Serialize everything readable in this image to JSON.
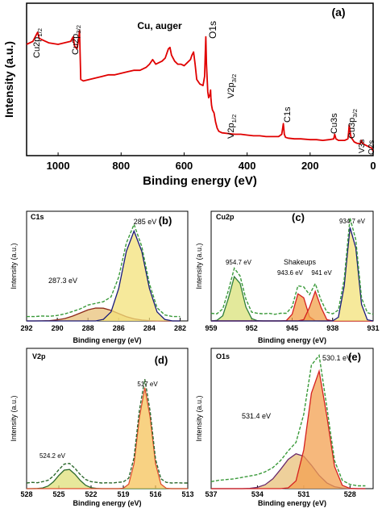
{
  "chart_data": [
    {
      "type": "line",
      "panel_label": "(a)",
      "xlabel": "Binding energy (eV)",
      "ylabel": "Intensity (a.u.)",
      "xlim": [
        1100,
        0
      ],
      "xticks": [
        1000,
        800,
        600,
        400,
        200,
        0
      ],
      "ylim": [
        0,
        100
      ],
      "x": [
        1100,
        1080,
        1065,
        1060,
        1050,
        1030,
        1000,
        980,
        960,
        955,
        952,
        948,
        940,
        935,
        932,
        928,
        920,
        900,
        880,
        860,
        840,
        820,
        800,
        780,
        760,
        740,
        720,
        710,
        700,
        690,
        680,
        670,
        660,
        650,
        645,
        640,
        630,
        620,
        610,
        600,
        590,
        580,
        575,
        570,
        565,
        560,
        550,
        540,
        535,
        533,
        531,
        529,
        525,
        522,
        518,
        516,
        515,
        513,
        510,
        505,
        500,
        495,
        490,
        480,
        460,
        440,
        420,
        400,
        380,
        360,
        340,
        320,
        300,
        290,
        285,
        282,
        278,
        270,
        250,
        230,
        200,
        180,
        160,
        140,
        125,
        122,
        118,
        110,
        100,
        90,
        80,
        78,
        76,
        72,
        70,
        60,
        50,
        40,
        37,
        33,
        25,
        15,
        5,
        0
      ],
      "series": [
        {
          "color": "#e00000",
          "values": [
            73,
            75,
            81,
            77,
            76,
            74,
            73,
            74,
            75,
            77,
            78,
            72,
            70,
            76,
            82,
            50,
            49,
            50,
            51,
            52,
            53,
            53,
            54,
            55,
            56,
            56,
            58,
            60,
            63,
            60,
            61,
            62,
            64,
            70,
            71,
            66,
            62,
            60,
            60,
            59,
            61,
            63,
            66,
            68,
            60,
            50,
            47,
            46,
            52,
            65,
            78,
            60,
            42,
            38,
            40,
            43,
            38,
            33,
            30,
            28,
            22,
            18,
            16,
            15,
            14.5,
            14,
            14,
            13.5,
            13,
            13,
            12.5,
            12.5,
            12.5,
            14,
            21,
            14,
            12,
            11.5,
            11,
            11,
            10.5,
            10.5,
            10,
            10.5,
            11,
            14,
            11,
            10,
            10,
            10,
            11,
            15,
            20,
            14,
            12,
            9,
            8,
            8,
            10,
            8,
            7,
            6,
            5,
            3
          ]
        }
      ],
      "annotations": [
        {
          "text": "Cu2p",
          "sub": "1/2"
        },
        {
          "text": "Cu2p",
          "sub": "3/2"
        },
        "Cu, auger",
        "O1s",
        {
          "text": "V2p",
          "sub": "3/2"
        },
        {
          "text": "V2p",
          "sub": "1/2"
        },
        "C1s",
        "Cu3s",
        {
          "text": "Cu3p",
          "sub": "3/2"
        },
        "V3s",
        "O2s"
      ]
    },
    {
      "type": "area",
      "title": "C1s",
      "panel_label": "(b)",
      "xlabel": "Binding energy (eV)",
      "ylabel": "Intensity (a.u.)",
      "xlim": [
        292,
        281.5
      ],
      "xticks": [
        292,
        290,
        288,
        286,
        284,
        282
      ],
      "ylim": [
        0,
        100
      ],
      "x": [
        292,
        291.5,
        291,
        290.5,
        290,
        289.5,
        289,
        288.5,
        288,
        287.5,
        287,
        286.5,
        286,
        285.5,
        285,
        284.5,
        284,
        283.5,
        283,
        282.5,
        282
      ],
      "series": [
        {
          "color": "#8b2a1a",
          "fill": "#e8c27a",
          "values": [
            0,
            0,
            0.1,
            0.3,
            1,
            2.2,
            4.4,
            7.3,
            10.1,
            11.8,
            11.6,
            9.6,
            6.7,
            3.9,
            1.9,
            0.8,
            0.3,
            0.1,
            0,
            0,
            0
          ]
        },
        {
          "color": "#1a1a7a",
          "fill": "#f3e27a",
          "values": [
            0,
            0,
            0,
            0,
            0,
            0,
            0,
            0,
            0,
            0,
            1.4,
            8.2,
            29.6,
            63.5,
            82,
            63.5,
            29.6,
            8.2,
            1.4,
            0,
            0
          ]
        },
        {
          "color": "#3a9a3a",
          "dash": true,
          "values": [
            4,
            4,
            4.5,
            4.3,
            5,
            6.5,
            8.6,
            11,
            14.5,
            16,
            17.5,
            22,
            40,
            71,
            88,
            68,
            34,
            12,
            5.5,
            4,
            4
          ]
        }
      ],
      "annotations": [
        "285 eV",
        "287.3 eV"
      ]
    },
    {
      "type": "area",
      "title": "Cu2p",
      "panel_label": "(c)",
      "xlabel": "Binding energy (eV)",
      "ylabel": "Intensity (a.u.)",
      "xlim": [
        959,
        931
      ],
      "xticks": [
        959,
        952,
        945,
        938,
        931
      ],
      "ylim": [
        0,
        100
      ],
      "x": [
        959,
        958,
        957,
        956,
        955,
        954,
        953,
        952,
        951,
        950,
        949,
        948,
        947,
        946,
        945,
        944,
        943,
        942,
        941,
        940,
        939,
        938,
        937,
        936,
        935,
        934,
        933,
        932,
        931
      ],
      "series": [
        {
          "color": "#2e7d3a",
          "fill": "#d9e27a",
          "values": [
            0,
            0.5,
            4.7,
            20.9,
            40.4,
            34.3,
            12.7,
            2.1,
            0.2,
            0,
            0,
            0,
            0,
            0,
            0,
            0,
            0,
            0,
            0,
            0,
            0,
            0,
            0,
            0,
            0,
            0,
            0,
            0,
            0
          ]
        },
        {
          "color": "#d42020",
          "fill": "#f2a24a",
          "values": [
            0,
            0,
            0,
            0,
            0,
            0,
            0,
            0,
            0,
            0,
            0,
            0,
            0,
            0.3,
            6.1,
            24.7,
            21.1,
            3.8,
            0.1,
            0,
            0,
            0,
            0,
            0,
            0,
            0,
            0,
            0,
            0
          ]
        },
        {
          "color": "#d42020",
          "fill": "#f2a24a",
          "values": [
            0,
            0,
            0,
            0,
            0,
            0,
            0,
            0,
            0,
            0,
            0,
            0,
            0,
            0,
            0,
            0,
            1.2,
            12.3,
            27,
            12.3,
            1.2,
            0,
            0,
            0,
            0,
            0,
            0,
            0,
            0
          ]
        },
        {
          "color": "#1a1a7a",
          "fill": "#f3e27a",
          "values": [
            0,
            0,
            0,
            0,
            0,
            0,
            0,
            0,
            0,
            0,
            0,
            0,
            0,
            0,
            0,
            0,
            0,
            0,
            0,
            0,
            0,
            0.1,
            3.4,
            31.8,
            85.2,
            66.6,
            15.1,
            1,
            0
          ]
        },
        {
          "color": "#3a9a3a",
          "dash": true,
          "values": [
            7,
            6.5,
            11,
            28,
            48,
            41,
            20,
            8,
            7,
            6.5,
            7,
            6,
            7,
            7,
            13,
            32,
            31,
            24,
            34,
            19,
            8,
            6.5,
            10,
            38,
            94,
            74,
            21,
            7.5,
            6
          ]
        }
      ],
      "annotations": [
        "934.7 eV",
        "954.7 eV",
        "Shakeups",
        "943.6 eV",
        "941 eV"
      ]
    },
    {
      "type": "area",
      "title": "V2p",
      "panel_label": "(d)",
      "xlabel": "Binding energy (eV)",
      "ylabel": "Intensity (a.u.)",
      "xlim": [
        528,
        513
      ],
      "xticks": [
        528,
        525,
        522,
        519,
        516,
        513
      ],
      "ylim": [
        0,
        100
      ],
      "x": [
        528,
        527.5,
        527,
        526.5,
        526,
        525.5,
        525,
        524.5,
        524,
        523.5,
        523,
        522.5,
        522,
        521.5,
        521,
        520.5,
        520,
        519.5,
        519,
        518.5,
        518,
        517.5,
        517,
        516.5,
        516,
        515.5,
        515,
        514.5,
        514,
        513.5,
        513
      ],
      "series": [
        {
          "color": "#2e6a2e",
          "fill": "#dfe07a",
          "values": [
            0,
            0,
            0.1,
            0.5,
            1.9,
            4.9,
            9.4,
            13.2,
            13.7,
            10.3,
            5.8,
            2.4,
            0.7,
            0.2,
            0,
            0,
            0,
            0,
            0,
            0,
            0,
            0,
            0,
            0,
            0,
            0,
            0,
            0,
            0,
            0,
            0
          ]
        },
        {
          "color": "#e05030",
          "fill": "#f6c35a",
          "values": [
            0,
            0,
            0,
            0,
            0,
            0,
            0,
            0,
            0,
            0,
            0,
            0,
            0,
            0,
            0,
            0,
            0,
            0,
            0.3,
            3.2,
            17.9,
            50.9,
            72,
            50.9,
            17.9,
            3.2,
            0.3,
            0,
            0,
            0,
            0
          ]
        },
        {
          "color": "#2e6a2e",
          "dash": true,
          "values": [
            4,
            4.5,
            4.2,
            5,
            6,
            9,
            13.5,
            17.5,
            18,
            14.5,
            10,
            6.5,
            5,
            4.5,
            4,
            4.2,
            4,
            4.5,
            4.8,
            7.5,
            22,
            56,
            78,
            55,
            21,
            7,
            4.5,
            4,
            4.2,
            4,
            4
          ]
        }
      ],
      "annotations": [
        "517 eV",
        "524.2 eV"
      ]
    },
    {
      "type": "area",
      "title": "O1s",
      "panel_label": "(e)",
      "xlabel": "Binding energy (eV)",
      "ylabel": "Intensity (a.u.)",
      "xlim": [
        537,
        526.5
      ],
      "xticks": [
        537,
        534,
        531,
        528
      ],
      "ylim": [
        0,
        100
      ],
      "x": [
        537,
        536.5,
        536,
        535.5,
        535,
        534.5,
        534,
        533.5,
        533,
        532.5,
        532,
        531.5,
        531,
        530.5,
        530,
        529.5,
        529,
        528.5,
        528,
        527.5,
        527
      ],
      "series": [
        {
          "color": "#6a2a6a",
          "fill": "#e8c07a",
          "values": [
            0,
            0,
            0,
            0,
            0,
            0.2,
            0.9,
            2.8,
            7,
            13.7,
            20.9,
            24.9,
            23.1,
            16.7,
            9.4,
            4.1,
            1.4,
            0.4,
            0.1,
            0,
            0
          ]
        },
        {
          "color": "#d42020",
          "fill": "#f3a050",
          "values": [
            0,
            0,
            0,
            0,
            0,
            0,
            0,
            0,
            0,
            0,
            0.6,
            5.6,
            27.6,
            68,
            83.8,
            51.6,
            15.8,
            2.4,
            0.2,
            0,
            0
          ]
        },
        {
          "color": "#3a9a3a",
          "dash": true,
          "values": [
            5,
            6,
            6.5,
            7,
            8,
            9,
            10,
            12,
            15,
            20,
            27,
            33,
            53,
            88,
            95,
            58,
            20,
            6,
            3,
            2,
            2
          ]
        }
      ],
      "annotations": [
        "530.1 eV",
        "531.4 eV"
      ]
    }
  ]
}
